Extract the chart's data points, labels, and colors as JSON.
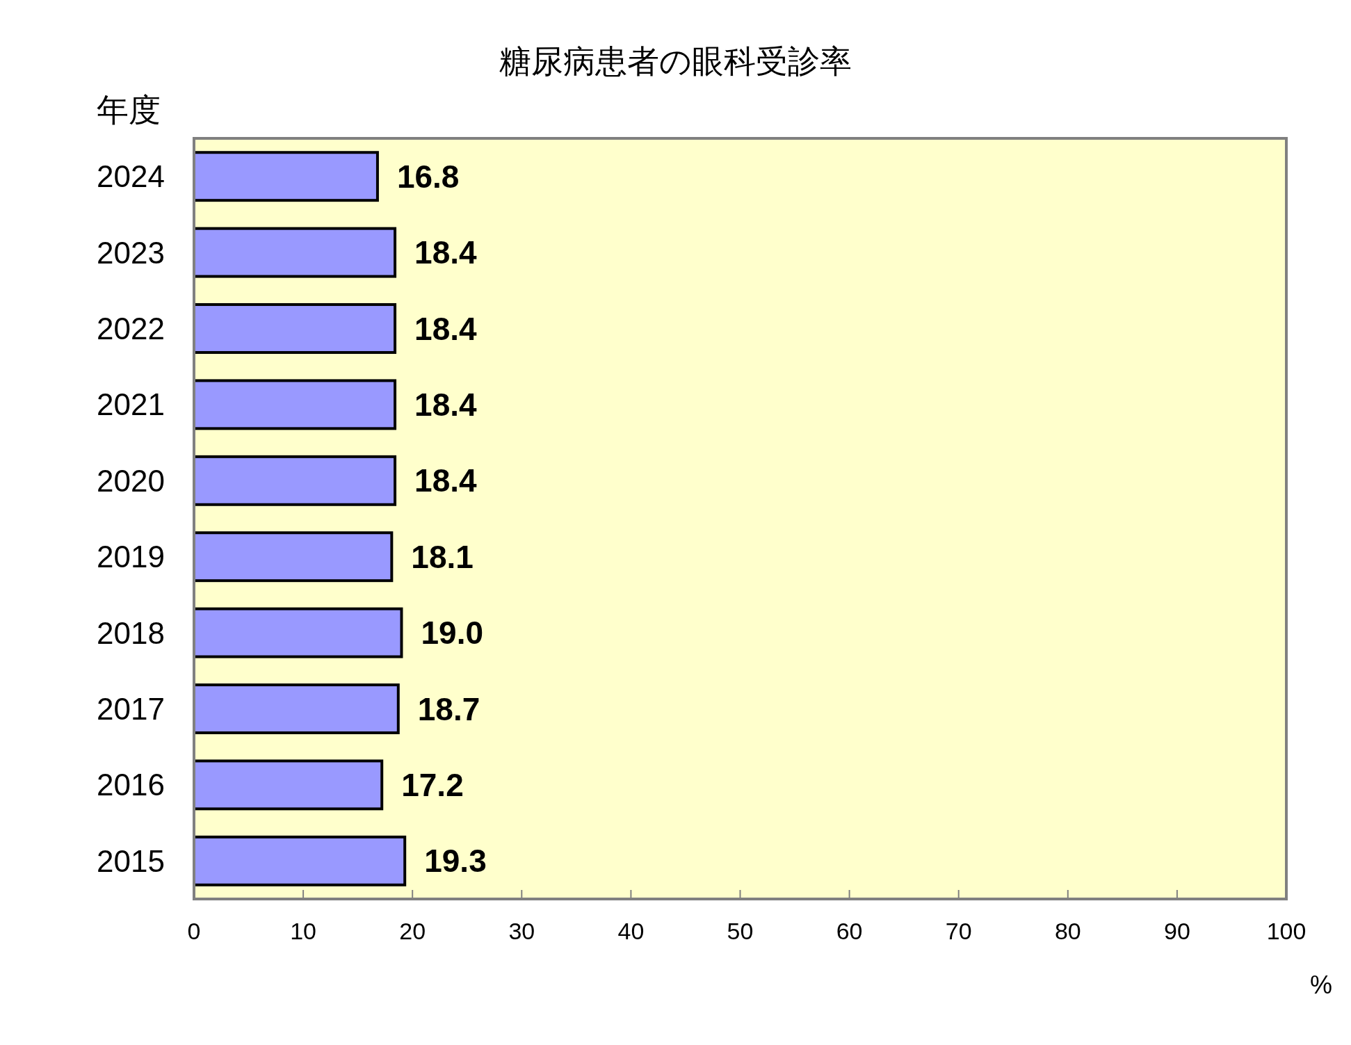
{
  "chart_data": {
    "type": "bar",
    "orientation": "horizontal",
    "title": "糖尿病患者の眼科受診率",
    "ylabel": "年度",
    "xlabel": "%",
    "categories": [
      "2024",
      "2023",
      "2022",
      "2021",
      "2020",
      "2019",
      "2018",
      "2017",
      "2016",
      "2015"
    ],
    "values": [
      16.8,
      18.4,
      18.4,
      18.4,
      18.4,
      18.1,
      19.0,
      18.7,
      17.2,
      19.3
    ],
    "value_labels": [
      "16.8",
      "18.4",
      "18.4",
      "18.4",
      "18.4",
      "18.1",
      "19.0",
      "18.7",
      "17.2",
      "19.3"
    ],
    "color": "#9999ff",
    "xlim": [
      0,
      100
    ],
    "xticks": [
      0,
      10,
      20,
      30,
      40,
      50,
      60,
      70,
      80,
      90,
      100
    ]
  }
}
